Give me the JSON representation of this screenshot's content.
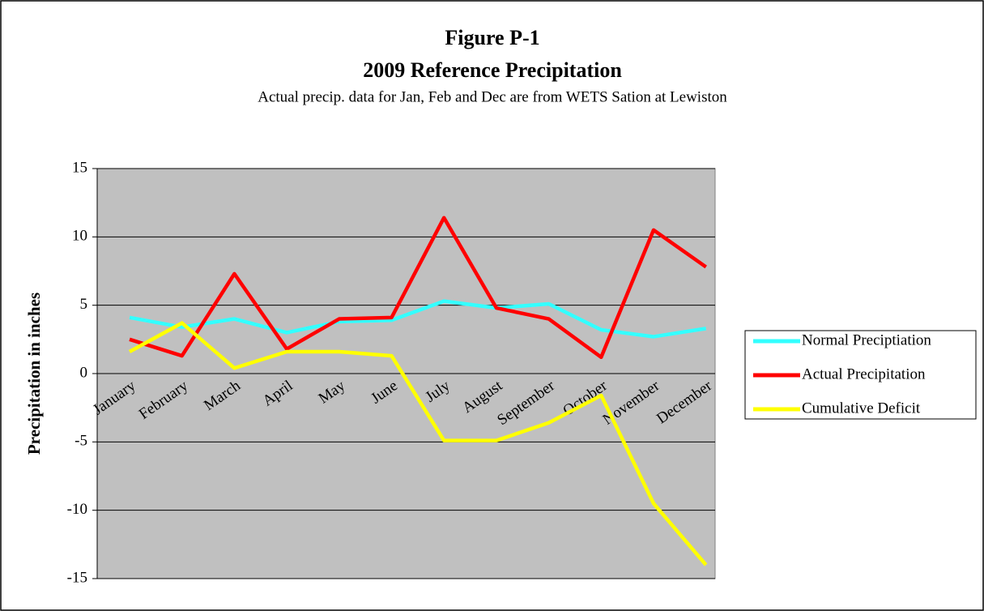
{
  "chart_data": {
    "type": "line",
    "title": "Figure P-1",
    "subtitle": "2009 Reference Precipitation",
    "annotation": "Actual precip. data for Jan, Feb and Dec are from WETS Sation at Lewiston",
    "y_label": "Precipitation in inches",
    "categories": [
      "January",
      "February",
      "March",
      "April",
      "May",
      "June",
      "July",
      "August",
      "September",
      "October",
      "November",
      "December"
    ],
    "series": [
      {
        "name": "Normal Preciptiation",
        "color": "#33ffff",
        "values": [
          4.1,
          3.4,
          4.0,
          3.0,
          3.8,
          3.9,
          5.3,
          4.8,
          5.1,
          3.2,
          2.7,
          3.3
        ]
      },
      {
        "name": "Actual Precipitation",
        "color": "#ff0000",
        "values": [
          2.5,
          1.3,
          7.3,
          1.8,
          4.0,
          4.1,
          11.4,
          4.8,
          4.0,
          1.2,
          10.5,
          7.8
        ]
      },
      {
        "name": "Cumulative Deficit",
        "color": "#ffff00",
        "values": [
          1.6,
          3.7,
          0.4,
          1.6,
          1.6,
          1.3,
          -4.9,
          -4.9,
          -3.6,
          -1.6,
          -9.5,
          -14.0
        ]
      }
    ],
    "ylim": [
      -15,
      15
    ],
    "yticks": [
      -15,
      -10,
      -5,
      0,
      5,
      10,
      15
    ],
    "grid": true,
    "legend": "right"
  }
}
